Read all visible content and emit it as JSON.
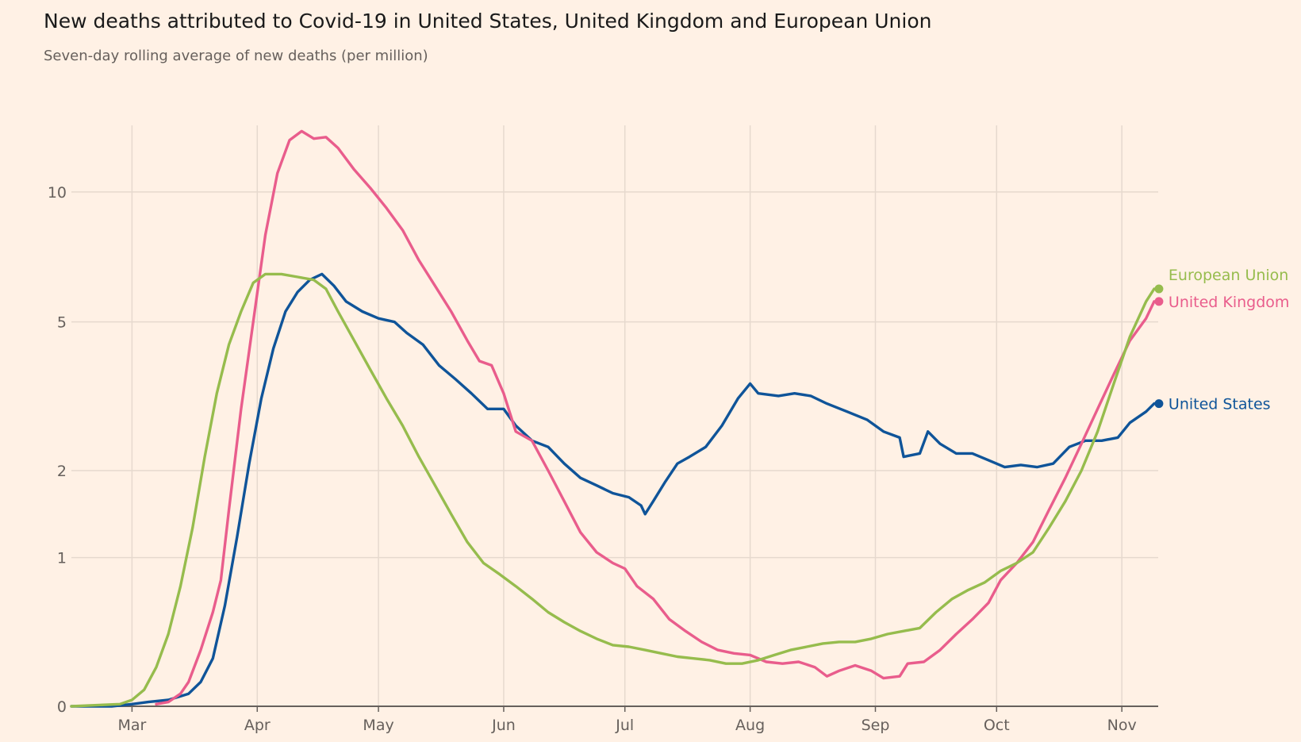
{
  "title": "New deaths attributed to Covid-19 in United States, United Kingdom and European Union",
  "subtitle": "Seven-day rolling average of new deaths (per million)",
  "chart_data": {
    "type": "line",
    "title": "New deaths attributed to Covid-19 in United States, United Kingdom and European Union",
    "subtitle": "Seven-day rolling average of new deaths (per million)",
    "xlabel": "",
    "ylabel": "",
    "x_axis": {
      "type": "date",
      "range": [
        "2020-02-15",
        "2020-11-10"
      ],
      "ticks": [
        {
          "label": "Mar",
          "date": "2020-03-01"
        },
        {
          "label": "Apr",
          "date": "2020-04-01"
        },
        {
          "label": "May",
          "date": "2020-05-01"
        },
        {
          "label": "Jun",
          "date": "2020-06-01"
        },
        {
          "label": "Jul",
          "date": "2020-07-01"
        },
        {
          "label": "Aug",
          "date": "2020-08-01"
        },
        {
          "label": "Sep",
          "date": "2020-09-01"
        },
        {
          "label": "Oct",
          "date": "2020-10-01"
        },
        {
          "label": "Nov",
          "date": "2020-11-01"
        }
      ]
    },
    "y_axis": {
      "scale": "symlog",
      "range": [
        0,
        14
      ],
      "ticks": [
        {
          "label": "0",
          "value": 0
        },
        {
          "label": "1",
          "value": 1
        },
        {
          "label": "2",
          "value": 2
        },
        {
          "label": "5",
          "value": 5
        },
        {
          "label": "10",
          "value": 10
        }
      ]
    },
    "grid": true,
    "legend": "direct labels at line ends",
    "series": [
      {
        "name": "United States",
        "color": "#0f5499",
        "points": [
          [
            "2020-02-15",
            0
          ],
          [
            "2020-02-25",
            0
          ],
          [
            "2020-03-01",
            0.01
          ],
          [
            "2020-03-05",
            0.02
          ],
          [
            "2020-03-10",
            0.03
          ],
          [
            "2020-03-15",
            0.06
          ],
          [
            "2020-03-18",
            0.12
          ],
          [
            "2020-03-21",
            0.25
          ],
          [
            "2020-03-24",
            0.6
          ],
          [
            "2020-03-27",
            1.2
          ],
          [
            "2020-03-30",
            2.1
          ],
          [
            "2020-04-02",
            3.2
          ],
          [
            "2020-04-05",
            4.3
          ],
          [
            "2020-04-08",
            5.3
          ],
          [
            "2020-04-11",
            5.9
          ],
          [
            "2020-04-14",
            6.3
          ],
          [
            "2020-04-17",
            6.5
          ],
          [
            "2020-04-20",
            6.1
          ],
          [
            "2020-04-23",
            5.6
          ],
          [
            "2020-04-27",
            5.3
          ],
          [
            "2020-05-01",
            5.1
          ],
          [
            "2020-05-05",
            5.0
          ],
          [
            "2020-05-08",
            4.7
          ],
          [
            "2020-05-12",
            4.4
          ],
          [
            "2020-05-16",
            3.9
          ],
          [
            "2020-05-20",
            3.6
          ],
          [
            "2020-05-24",
            3.3
          ],
          [
            "2020-05-28",
            3.0
          ],
          [
            "2020-06-01",
            3.0
          ],
          [
            "2020-06-04",
            2.7
          ],
          [
            "2020-06-08",
            2.45
          ],
          [
            "2020-06-12",
            2.35
          ],
          [
            "2020-06-16",
            2.1
          ],
          [
            "2020-06-20",
            1.9
          ],
          [
            "2020-06-24",
            1.8
          ],
          [
            "2020-06-28",
            1.7
          ],
          [
            "2020-07-02",
            1.65
          ],
          [
            "2020-07-05",
            1.55
          ],
          [
            "2020-07-06",
            1.45
          ],
          [
            "2020-07-08",
            1.6
          ],
          [
            "2020-07-11",
            1.85
          ],
          [
            "2020-07-14",
            2.1
          ],
          [
            "2020-07-17",
            2.2
          ],
          [
            "2020-07-21",
            2.35
          ],
          [
            "2020-07-25",
            2.7
          ],
          [
            "2020-07-29",
            3.2
          ],
          [
            "2020-08-01",
            3.5
          ],
          [
            "2020-08-03",
            3.3
          ],
          [
            "2020-08-08",
            3.25
          ],
          [
            "2020-08-12",
            3.3
          ],
          [
            "2020-08-16",
            3.25
          ],
          [
            "2020-08-20",
            3.1
          ],
          [
            "2020-08-25",
            2.95
          ],
          [
            "2020-08-30",
            2.8
          ],
          [
            "2020-09-03",
            2.6
          ],
          [
            "2020-09-07",
            2.5
          ],
          [
            "2020-09-08",
            2.2
          ],
          [
            "2020-09-12",
            2.25
          ],
          [
            "2020-09-14",
            2.6
          ],
          [
            "2020-09-17",
            2.4
          ],
          [
            "2020-09-21",
            2.25
          ],
          [
            "2020-09-25",
            2.25
          ],
          [
            "2020-09-29",
            2.15
          ],
          [
            "2020-10-03",
            2.05
          ],
          [
            "2020-10-07",
            2.08
          ],
          [
            "2020-10-11",
            2.05
          ],
          [
            "2020-10-15",
            2.1
          ],
          [
            "2020-10-19",
            2.35
          ],
          [
            "2020-10-23",
            2.45
          ],
          [
            "2020-10-27",
            2.45
          ],
          [
            "2020-10-31",
            2.5
          ],
          [
            "2020-11-03",
            2.75
          ],
          [
            "2020-11-07",
            2.95
          ],
          [
            "2020-11-09",
            3.1
          ]
        ]
      },
      {
        "name": "United Kingdom",
        "color": "#e95d8c",
        "points": [
          [
            "2020-03-07",
            0.01
          ],
          [
            "2020-03-10",
            0.02
          ],
          [
            "2020-03-13",
            0.06
          ],
          [
            "2020-03-15",
            0.12
          ],
          [
            "2020-03-18",
            0.3
          ],
          [
            "2020-03-21",
            0.55
          ],
          [
            "2020-03-23",
            0.8
          ],
          [
            "2020-03-25",
            1.5
          ],
          [
            "2020-03-28",
            3.0
          ],
          [
            "2020-03-31",
            5.0
          ],
          [
            "2020-04-03",
            8.0
          ],
          [
            "2020-04-06",
            11.0
          ],
          [
            "2020-04-09",
            13.0
          ],
          [
            "2020-04-12",
            13.6
          ],
          [
            "2020-04-15",
            13.1
          ],
          [
            "2020-04-18",
            13.2
          ],
          [
            "2020-04-21",
            12.5
          ],
          [
            "2020-04-25",
            11.2
          ],
          [
            "2020-04-29",
            10.2
          ],
          [
            "2020-05-03",
            9.2
          ],
          [
            "2020-05-07",
            8.2
          ],
          [
            "2020-05-11",
            7.0
          ],
          [
            "2020-05-15",
            6.1
          ],
          [
            "2020-05-19",
            5.3
          ],
          [
            "2020-05-23",
            4.5
          ],
          [
            "2020-05-26",
            4.0
          ],
          [
            "2020-05-29",
            3.9
          ],
          [
            "2020-06-01",
            3.3
          ],
          [
            "2020-06-04",
            2.6
          ],
          [
            "2020-06-08",
            2.45
          ],
          [
            "2020-06-12",
            2.0
          ],
          [
            "2020-06-16",
            1.6
          ],
          [
            "2020-06-20",
            1.25
          ],
          [
            "2020-06-24",
            1.05
          ],
          [
            "2020-06-28",
            0.95
          ],
          [
            "2020-07-01",
            0.9
          ],
          [
            "2020-07-04",
            0.75
          ],
          [
            "2020-07-08",
            0.65
          ],
          [
            "2020-07-12",
            0.5
          ],
          [
            "2020-07-16",
            0.42
          ],
          [
            "2020-07-20",
            0.35
          ],
          [
            "2020-07-24",
            0.3
          ],
          [
            "2020-07-28",
            0.28
          ],
          [
            "2020-08-01",
            0.27
          ],
          [
            "2020-08-05",
            0.23
          ],
          [
            "2020-08-09",
            0.22
          ],
          [
            "2020-08-13",
            0.23
          ],
          [
            "2020-08-17",
            0.2
          ],
          [
            "2020-08-20",
            0.15
          ],
          [
            "2020-08-23",
            0.18
          ],
          [
            "2020-08-27",
            0.21
          ],
          [
            "2020-08-31",
            0.18
          ],
          [
            "2020-09-03",
            0.14
          ],
          [
            "2020-09-07",
            0.15
          ],
          [
            "2020-09-09",
            0.22
          ],
          [
            "2020-09-13",
            0.23
          ],
          [
            "2020-09-17",
            0.3
          ],
          [
            "2020-09-21",
            0.4
          ],
          [
            "2020-09-25",
            0.5
          ],
          [
            "2020-09-29",
            0.62
          ],
          [
            "2020-10-02",
            0.8
          ],
          [
            "2020-10-06",
            0.95
          ],
          [
            "2020-10-10",
            1.15
          ],
          [
            "2020-10-14",
            1.5
          ],
          [
            "2020-10-18",
            1.9
          ],
          [
            "2020-10-22",
            2.4
          ],
          [
            "2020-10-26",
            3.0
          ],
          [
            "2020-10-30",
            3.7
          ],
          [
            "2020-11-03",
            4.5
          ],
          [
            "2020-11-07",
            5.1
          ],
          [
            "2020-11-09",
            5.6
          ]
        ]
      },
      {
        "name": "European Union",
        "color": "#96bc4d",
        "points": [
          [
            "2020-02-15",
            0
          ],
          [
            "2020-02-27",
            0.01
          ],
          [
            "2020-03-01",
            0.03
          ],
          [
            "2020-03-04",
            0.08
          ],
          [
            "2020-03-07",
            0.2
          ],
          [
            "2020-03-10",
            0.4
          ],
          [
            "2020-03-13",
            0.75
          ],
          [
            "2020-03-16",
            1.3
          ],
          [
            "2020-03-19",
            2.2
          ],
          [
            "2020-03-22",
            3.3
          ],
          [
            "2020-03-25",
            4.4
          ],
          [
            "2020-03-28",
            5.3
          ],
          [
            "2020-03-31",
            6.2
          ],
          [
            "2020-04-03",
            6.5
          ],
          [
            "2020-04-07",
            6.5
          ],
          [
            "2020-04-11",
            6.4
          ],
          [
            "2020-04-15",
            6.3
          ],
          [
            "2020-04-18",
            6.0
          ],
          [
            "2020-04-21",
            5.3
          ],
          [
            "2020-04-25",
            4.5
          ],
          [
            "2020-04-29",
            3.8
          ],
          [
            "2020-05-03",
            3.2
          ],
          [
            "2020-05-07",
            2.7
          ],
          [
            "2020-05-11",
            2.2
          ],
          [
            "2020-05-15",
            1.8
          ],
          [
            "2020-05-19",
            1.45
          ],
          [
            "2020-05-23",
            1.15
          ],
          [
            "2020-05-27",
            0.95
          ],
          [
            "2020-05-31",
            0.85
          ],
          [
            "2020-06-04",
            0.75
          ],
          [
            "2020-06-08",
            0.65
          ],
          [
            "2020-06-12",
            0.55
          ],
          [
            "2020-06-16",
            0.48
          ],
          [
            "2020-06-20",
            0.42
          ],
          [
            "2020-06-24",
            0.37
          ],
          [
            "2020-06-28",
            0.33
          ],
          [
            "2020-07-02",
            0.32
          ],
          [
            "2020-07-06",
            0.3
          ],
          [
            "2020-07-10",
            0.28
          ],
          [
            "2020-07-14",
            0.26
          ],
          [
            "2020-07-18",
            0.25
          ],
          [
            "2020-07-22",
            0.24
          ],
          [
            "2020-07-26",
            0.22
          ],
          [
            "2020-07-30",
            0.22
          ],
          [
            "2020-08-03",
            0.24
          ],
          [
            "2020-08-07",
            0.27
          ],
          [
            "2020-08-11",
            0.3
          ],
          [
            "2020-08-15",
            0.32
          ],
          [
            "2020-08-19",
            0.34
          ],
          [
            "2020-08-23",
            0.35
          ],
          [
            "2020-08-27",
            0.35
          ],
          [
            "2020-08-31",
            0.37
          ],
          [
            "2020-09-04",
            0.4
          ],
          [
            "2020-09-08",
            0.42
          ],
          [
            "2020-09-12",
            0.44
          ],
          [
            "2020-09-16",
            0.55
          ],
          [
            "2020-09-20",
            0.65
          ],
          [
            "2020-09-24",
            0.72
          ],
          [
            "2020-09-28",
            0.78
          ],
          [
            "2020-10-02",
            0.88
          ],
          [
            "2020-10-06",
            0.95
          ],
          [
            "2020-10-10",
            1.05
          ],
          [
            "2020-10-14",
            1.3
          ],
          [
            "2020-10-18",
            1.6
          ],
          [
            "2020-10-22",
            2.0
          ],
          [
            "2020-10-26",
            2.6
          ],
          [
            "2020-10-30",
            3.5
          ],
          [
            "2020-11-03",
            4.6
          ],
          [
            "2020-11-07",
            5.6
          ],
          [
            "2020-11-09",
            6.0
          ]
        ]
      }
    ]
  }
}
